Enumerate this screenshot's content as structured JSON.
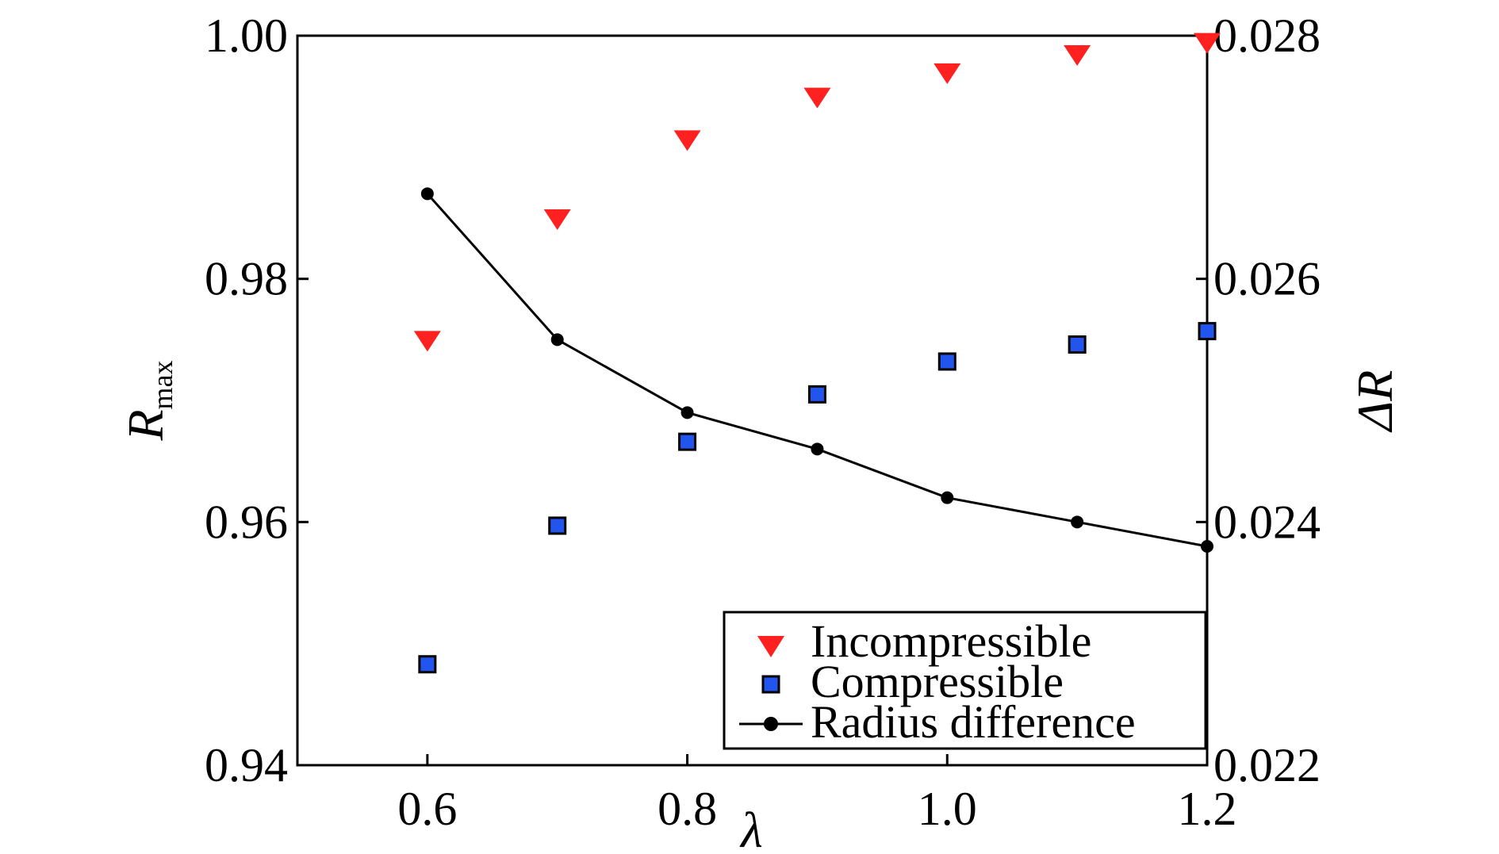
{
  "chart_data": {
    "type": "scatter",
    "x": [
      0.6,
      0.7,
      0.8,
      0.9,
      1.0,
      1.1,
      1.2
    ],
    "xlim": [
      0.5,
      1.2
    ],
    "xticks": [
      "0.6",
      "0.8",
      "1.0",
      "1.2"
    ],
    "xlabel": "λ",
    "ylabel_left": {
      "main": "R",
      "sub": "max"
    },
    "ylim_left": [
      0.94,
      1.0
    ],
    "yticks_left": [
      "0.94",
      "0.96",
      "0.98",
      "1.00"
    ],
    "ylabel_right": "ΔR",
    "ylim_right": [
      0.022,
      0.028
    ],
    "yticks_right": [
      "0.022",
      "0.024",
      "0.026",
      "0.028"
    ],
    "grid": false,
    "legend_position": "bottom-right",
    "series": [
      {
        "name": "Incompressible",
        "axis": "left",
        "marker": "triangle-down",
        "color": "#ff2020",
        "values": [
          0.975,
          0.985,
          0.9915,
          0.995,
          0.997,
          0.9985,
          0.9995
        ]
      },
      {
        "name": "Compressible",
        "axis": "left",
        "marker": "square",
        "color": "#2255ee",
        "values": [
          0.9483,
          0.9597,
          0.9666,
          0.9705,
          0.9732,
          0.9746,
          0.9757
        ]
      },
      {
        "name": "Radius difference",
        "axis": "right",
        "marker": "circle-line",
        "color": "#000000",
        "values": [
          0.0267,
          0.0255,
          0.0249,
          0.0246,
          0.0242,
          0.024,
          0.0238
        ]
      }
    ]
  }
}
